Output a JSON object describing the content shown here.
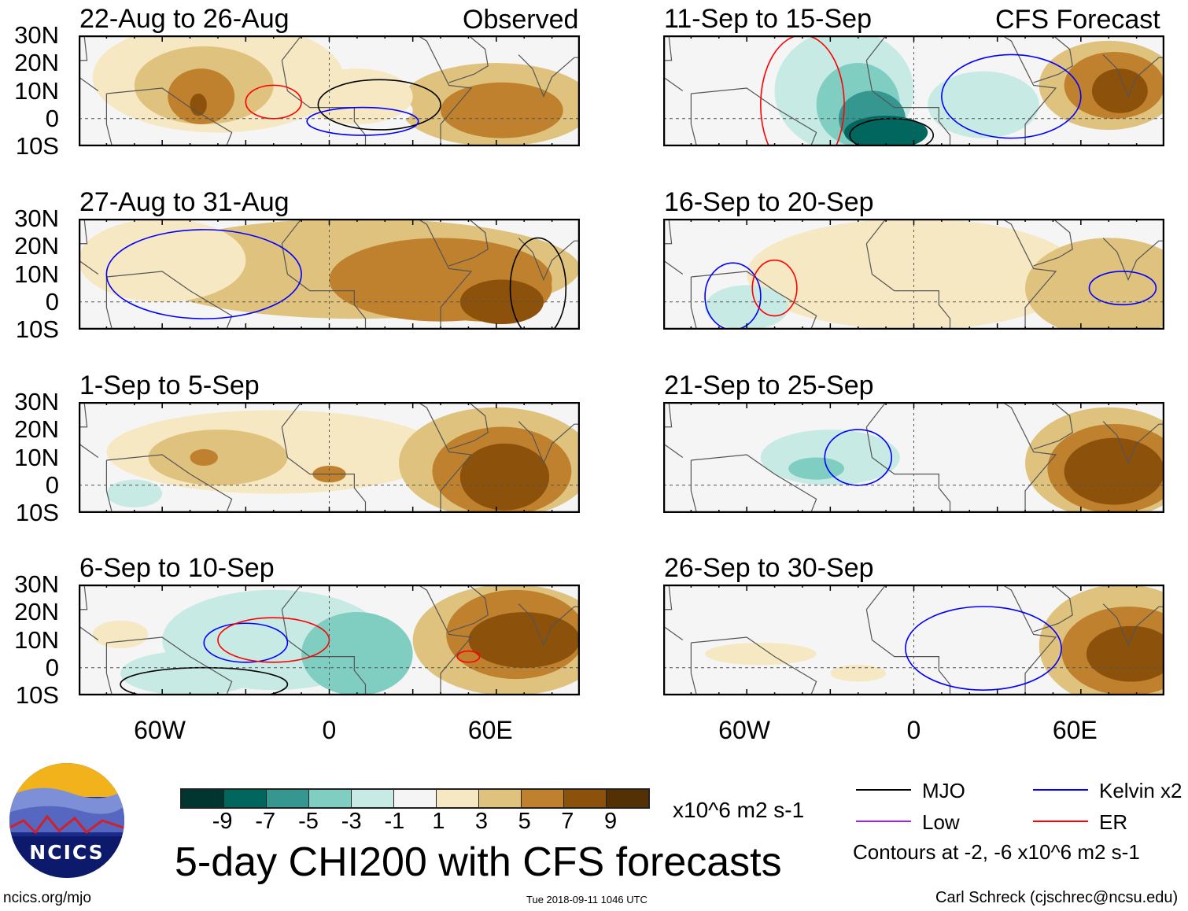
{
  "labels": {
    "observed": "Observed",
    "forecast": "CFS Forecast",
    "units": "x10^6 m2 s-1",
    "title": "5-day CHI200 with CFS forecasts",
    "site": "ncics.org/mjo",
    "timestamp": "Tue 2018-09-11 1046 UTC",
    "author": "Carl Schreck (cjschrec@ncsu.edu)",
    "logo": "NCICS",
    "contours_note": "Contours at -2, -6 x10^6 m2 s-1"
  },
  "lat_labels": [
    "30N",
    "20N",
    "10N",
    "0",
    "10S"
  ],
  "lon_labels": [
    "60W",
    "0",
    "60E"
  ],
  "colorbar": {
    "colors": [
      "#01352f",
      "#01665e",
      "#35978f",
      "#80cdc1",
      "#c7eae5",
      "#f5f5f5",
      "#f6e8c3",
      "#dfc27d",
      "#bf812d",
      "#8c510a",
      "#543005"
    ],
    "ticks": [
      "-9",
      "-7",
      "-5",
      "-3",
      "-1",
      "1",
      "3",
      "5",
      "7",
      "9"
    ]
  },
  "legend": [
    {
      "label": "MJO",
      "color": "#000000"
    },
    {
      "label": "Kelvin x2",
      "color": "#0000ff"
    },
    {
      "label": "Low",
      "color": "#a020f0"
    },
    {
      "label": "ER",
      "color": "#ff0000"
    }
  ],
  "panels": [
    {
      "title": "22-Aug to 26-Aug",
      "blobs": [
        [
          -40,
          15,
          45,
          20,
          6
        ],
        [
          -45,
          12,
          25,
          14,
          7
        ],
        [
          -46,
          8,
          12,
          10,
          8
        ],
        [
          -47,
          5,
          3,
          4,
          9
        ],
        [
          60,
          5,
          35,
          15,
          7
        ],
        [
          62,
          3,
          22,
          10,
          8
        ],
        [
          15,
          3,
          15,
          6,
          5
        ],
        [
          10,
          8,
          20,
          10,
          6
        ]
      ],
      "contours": [
        [
          -20,
          6,
          10,
          6,
          "#ff0000"
        ],
        [
          18,
          5,
          22,
          9,
          "#000000"
        ],
        [
          12,
          -1,
          20,
          5,
          "#0000ff"
        ]
      ]
    },
    {
      "title": "11-Sep to 15-Sep",
      "blobs": [
        [
          -25,
          10,
          25,
          22,
          4
        ],
        [
          -20,
          5,
          15,
          15,
          3
        ],
        [
          -15,
          0,
          12,
          10,
          2
        ],
        [
          -10,
          -5,
          15,
          6,
          1
        ],
        [
          70,
          12,
          25,
          16,
          7
        ],
        [
          72,
          12,
          18,
          12,
          8
        ],
        [
          74,
          10,
          10,
          8,
          9
        ],
        [
          25,
          5,
          20,
          12,
          4
        ]
      ],
      "contours": [
        [
          -8,
          -6,
          15,
          6,
          "#000000"
        ],
        [
          35,
          8,
          25,
          15,
          "#0000ff"
        ],
        [
          -40,
          5,
          15,
          25,
          "#ff0000"
        ]
      ]
    },
    {
      "title": "27-Aug to 31-Aug",
      "blobs": [
        [
          10,
          12,
          80,
          18,
          7
        ],
        [
          40,
          8,
          40,
          15,
          8
        ],
        [
          55,
          5,
          25,
          12,
          8
        ],
        [
          62,
          0,
          15,
          8,
          9
        ],
        [
          -60,
          15,
          30,
          15,
          6
        ]
      ],
      "contours": [
        [
          -45,
          10,
          35,
          16,
          "#0000ff"
        ],
        [
          75,
          5,
          10,
          18,
          "#000000"
        ]
      ]
    },
    {
      "title": "16-Sep to 20-Sep",
      "blobs": [
        [
          0,
          10,
          60,
          20,
          6
        ],
        [
          70,
          5,
          30,
          18,
          7
        ],
        [
          -60,
          -2,
          15,
          8,
          4
        ]
      ],
      "contours": [
        [
          -65,
          2,
          10,
          12,
          "#0000ff"
        ],
        [
          75,
          5,
          12,
          6,
          "#0000ff"
        ],
        [
          -50,
          5,
          8,
          10,
          "#ff0000"
        ]
      ]
    },
    {
      "title": "1-Sep to 5-Sep",
      "blobs": [
        [
          -20,
          12,
          60,
          15,
          6
        ],
        [
          -40,
          10,
          25,
          10,
          7
        ],
        [
          -45,
          10,
          5,
          3,
          8
        ],
        [
          0,
          4,
          6,
          3,
          8
        ],
        [
          60,
          8,
          35,
          20,
          7
        ],
        [
          62,
          5,
          25,
          16,
          8
        ],
        [
          63,
          3,
          16,
          12,
          9
        ],
        [
          -70,
          -3,
          10,
          5,
          4
        ]
      ],
      "contours": []
    },
    {
      "title": "21-Sep to 25-Sep",
      "blobs": [
        [
          70,
          8,
          30,
          20,
          7
        ],
        [
          72,
          6,
          24,
          16,
          8
        ],
        [
          72,
          5,
          18,
          12,
          9
        ],
        [
          -30,
          10,
          25,
          10,
          4
        ],
        [
          -35,
          6,
          10,
          4,
          3
        ]
      ],
      "contours": [
        [
          -20,
          10,
          12,
          10,
          "#0000ff"
        ]
      ]
    },
    {
      "title": "6-Sep to 10-Sep",
      "blobs": [
        [
          -20,
          10,
          40,
          18,
          4
        ],
        [
          10,
          5,
          20,
          15,
          3
        ],
        [
          -50,
          -2,
          25,
          8,
          4
        ],
        [
          65,
          10,
          35,
          20,
          7
        ],
        [
          67,
          12,
          25,
          16,
          8
        ],
        [
          70,
          10,
          20,
          10,
          9
        ],
        [
          -75,
          12,
          10,
          5,
          6
        ]
      ],
      "contours": [
        [
          -30,
          9,
          15,
          7,
          "#0000ff"
        ],
        [
          -45,
          -6,
          30,
          6,
          "#000000"
        ],
        [
          -20,
          10,
          20,
          8,
          "#ff0000"
        ],
        [
          50,
          4,
          4,
          2,
          "#ff0000"
        ]
      ]
    },
    {
      "title": "26-Sep to 30-Sep",
      "blobs": [
        [
          75,
          8,
          30,
          22,
          7
        ],
        [
          77,
          6,
          24,
          16,
          8
        ],
        [
          78,
          5,
          16,
          10,
          9
        ],
        [
          -55,
          5,
          20,
          4,
          6
        ],
        [
          -20,
          -2,
          10,
          3,
          6
        ]
      ],
      "contours": [
        [
          25,
          7,
          28,
          15,
          "#0000ff"
        ]
      ]
    }
  ]
}
